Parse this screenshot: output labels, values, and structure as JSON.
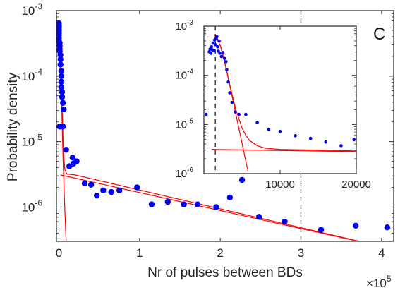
{
  "chart_data": [
    {
      "type": "scatter",
      "xlabel": "Nr of pulses between BDs",
      "ylabel": "Probability density",
      "x_multiplier_label": "×10",
      "x_multiplier_exponent": "5",
      "panel_label": "C",
      "y_scale": "log",
      "xlim": [
        -3000,
        415000
      ],
      "ylim": [
        3e-07,
        0.001
      ],
      "x_ticks": [
        0,
        100000,
        200000,
        300000,
        400000
      ],
      "x_tick_labels": [
        "0",
        "1",
        "2",
        "3",
        "4"
      ],
      "y_ticks": [
        1e-06,
        1e-05,
        0.0001,
        0.001
      ],
      "y_tick_labels": [
        {
          "base": "10",
          "exp": "-6"
        },
        {
          "base": "10",
          "exp": "-5"
        },
        {
          "base": "10",
          "exp": "-4"
        },
        {
          "base": "10",
          "exp": "-3"
        }
      ],
      "grid": false,
      "dashed_vline_x": 300000,
      "marker_color": "#0000ee",
      "line_color": "#ff0000",
      "series": [
        {
          "type": "scatter",
          "points": [
            [
              0,
              0.00064
            ],
            [
              0,
              0.00059
            ],
            [
              0,
              0.00056
            ],
            [
              0,
              0.00052
            ],
            [
              0,
              0.00049
            ],
            [
              0,
              0.00045
            ],
            [
              0,
              0.00042
            ],
            [
              0,
              0.00038
            ],
            [
              0,
              0.00035
            ],
            [
              1000,
              0.00032
            ],
            [
              1000,
              0.00029
            ],
            [
              1000,
              0.00026
            ],
            [
              1000,
              0.00024
            ],
            [
              2000,
              0.00021
            ],
            [
              2000,
              0.00018
            ],
            [
              2000,
              0.00015
            ],
            [
              3000,
              0.00012
            ],
            [
              3000,
              0.0001
            ],
            [
              3000,
              8.2e-05
            ],
            [
              3000,
              6.8e-05
            ],
            [
              4000,
              5.7e-05
            ],
            [
              4000,
              4.8e-05
            ],
            [
              5000,
              3.9e-05
            ],
            [
              6000,
              3.1e-05
            ],
            [
              1000,
              1.7e-05
            ],
            [
              5000,
              1.7e-05
            ],
            [
              9000,
              7.5e-06
            ],
            [
              17000,
              5.7e-06
            ],
            [
              13000,
              4.2e-06
            ],
            [
              18000,
              4.6e-06
            ],
            [
              22000,
              5e-06
            ],
            [
              32000,
              2.3e-06
            ],
            [
              40000,
              2.2e-06
            ],
            [
              47000,
              1.5e-06
            ],
            [
              55000,
              1.8e-06
            ],
            [
              65000,
              1.7e-06
            ],
            [
              75000,
              1.8e-06
            ],
            [
              97000,
              2e-06
            ],
            [
              115000,
              1.1e-06
            ],
            [
              135000,
              1.2e-06
            ],
            [
              155000,
              1.1e-06
            ],
            [
              172000,
              1.1e-06
            ],
            [
              195000,
              1e-06
            ],
            [
              212000,
              1.4e-06
            ],
            [
              248000,
              7.1e-07
            ],
            [
              280000,
              6e-07
            ],
            [
              325000,
              4.5e-07
            ],
            [
              368000,
              5.2e-07
            ],
            [
              407000,
              4.9e-07
            ],
            [
              227000,
              2.6e-06
            ]
          ]
        },
        {
          "type": "line",
          "name": "",
          "points": [
            [
              0,
              0.00065
            ],
            [
              1000,
              0.00042
            ],
            [
              2000,
              0.00021
            ],
            [
              3000,
              8e-05
            ],
            [
              4000,
              2e-05
            ],
            [
              5500,
              4e-06
            ],
            [
              7000,
              1.2e-06
            ],
            [
              9000,
              3e-07
            ]
          ]
        },
        {
          "type": "line",
          "name": "",
          "points": [
            [
              0,
              0.00065
            ],
            [
              1000,
              0.00042
            ],
            [
              2000,
              0.00021
            ],
            [
              3000,
              9e-05
            ],
            [
              4000,
              3.5e-05
            ],
            [
              5000,
              1.3e-05
            ],
            [
              6000,
              5.8e-06
            ],
            [
              7500,
              3.7e-06
            ],
            [
              10000,
              3.2e-06
            ],
            [
              20000,
              3.1e-06
            ],
            [
              400000,
              2.5e-07
            ]
          ]
        },
        {
          "type": "line",
          "name": "",
          "points": [
            [
              2000,
              3.1e-06
            ],
            [
              400000,
              2.5e-07
            ]
          ]
        }
      ]
    },
    {
      "type": "scatter",
      "role": "inset",
      "y_scale": "log",
      "xlim": [
        0,
        20000
      ],
      "ylim": [
        1e-06,
        0.001
      ],
      "x_ticks": [
        10000,
        20000
      ],
      "x_tick_labels": [
        "10000",
        "20000"
      ],
      "y_ticks": [
        1e-06,
        1e-05,
        0.0001,
        0.001
      ],
      "y_tick_labels": [
        {
          "base": "10",
          "exp": "-6"
        },
        {
          "base": "10",
          "exp": "-5"
        },
        {
          "base": "10",
          "exp": "-4"
        },
        {
          "base": "10",
          "exp": "-3"
        }
      ],
      "dashed_vline_x": 1500,
      "marker_color": "#0000ee",
      "line_color": "#ff0000",
      "series": [
        {
          "type": "scatter",
          "points": [
            [
              300,
              1.6e-05
            ],
            [
              700,
              0.0003
            ],
            [
              800,
              0.00034
            ],
            [
              900,
              0.00028
            ],
            [
              1000,
              0.00038
            ],
            [
              1100,
              0.00033
            ],
            [
              1200,
              0.00045
            ],
            [
              1300,
              0.00032
            ],
            [
              1400,
              0.00052
            ],
            [
              1500,
              0.00042
            ],
            [
              1600,
              0.00056
            ],
            [
              1700,
              0.00061
            ],
            [
              1800,
              0.00038
            ],
            [
              1900,
              0.00031
            ],
            [
              2000,
              0.0005
            ],
            [
              2100,
              0.00028
            ],
            [
              2300,
              0.00024
            ],
            [
              2500,
              0.00029
            ],
            [
              2700,
              0.00022
            ],
            [
              2900,
              0.00019
            ],
            [
              3000,
              0.00013
            ],
            [
              3200,
              7.3e-05
            ],
            [
              3400,
              4.4e-05
            ],
            [
              3700,
              2.8e-05
            ],
            [
              4100,
              1.8e-05
            ],
            [
              4600,
              1.6e-05
            ],
            [
              5500,
              1.6e-05
            ],
            [
              7000,
              1.1e-05
            ],
            [
              8500,
              7.9e-06
            ],
            [
              10000,
              7.2e-06
            ],
            [
              12000,
              5.9e-06
            ],
            [
              14000,
              5.2e-06
            ],
            [
              16000,
              4.4e-06
            ],
            [
              18000,
              3.7e-06
            ],
            [
              19700,
              4.9e-06
            ]
          ]
        },
        {
          "type": "line",
          "name": "",
          "points": [
            [
              1400,
              0.00065
            ],
            [
              1800,
              0.00055
            ],
            [
              2200,
              0.00038
            ],
            [
              2600,
              0.00022
            ],
            [
              3000,
              0.00012
            ],
            [
              3400,
              6.2e-05
            ],
            [
              3800,
              3.2e-05
            ],
            [
              4200,
              1.6e-05
            ],
            [
              4600,
              8.2e-06
            ],
            [
              5000,
              4.2e-06
            ],
            [
              5400,
              2.1e-06
            ],
            [
              5800,
              1.1e-06
            ]
          ]
        },
        {
          "type": "line",
          "name": "",
          "points": [
            [
              1400,
              0.00065
            ],
            [
              1800,
              0.00055
            ],
            [
              2200,
              0.00038
            ],
            [
              2600,
              0.00023
            ],
            [
              3000,
              0.00012
            ],
            [
              3400,
              6.4e-05
            ],
            [
              3800,
              3.5e-05
            ],
            [
              4200,
              2e-05
            ],
            [
              4600,
              1.3e-05
            ],
            [
              5000,
              8.5e-06
            ],
            [
              5500,
              6e-06
            ],
            [
              6000,
              4.7e-06
            ],
            [
              7000,
              3.7e-06
            ],
            [
              8000,
              3.3e-06
            ],
            [
              10000,
              3.1e-06
            ],
            [
              20000,
              2.9e-06
            ]
          ]
        },
        {
          "type": "line",
          "name": "",
          "points": [
            [
              1000,
              3.1e-06
            ],
            [
              20000,
              2.8e-06
            ]
          ]
        }
      ]
    }
  ]
}
